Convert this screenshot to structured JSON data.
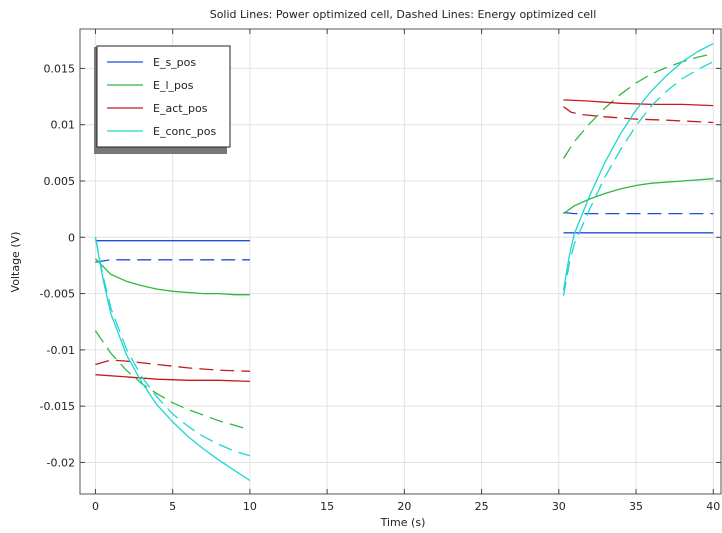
{
  "chart_data": {
    "type": "line",
    "title": "Solid Lines: Power optimized cell, Dashed Lines: Energy optimized cell",
    "xlabel": "Time (s)",
    "ylabel": "Voltage (V)",
    "xlim": [
      -1,
      40.5
    ],
    "ylim": [
      -0.0228,
      0.0185
    ],
    "xticks": [
      0,
      5,
      10,
      15,
      20,
      25,
      30,
      35,
      40
    ],
    "yticks": [
      0.015,
      0.01,
      0.005,
      0,
      -0.005,
      -0.01,
      -0.015,
      -0.02
    ],
    "xtick_labels": [
      "0",
      "5",
      "10",
      "15",
      "20",
      "25",
      "30",
      "35",
      "40"
    ],
    "ytick_labels": [
      "0.015",
      "0.01",
      "0.005",
      "0",
      "-0.005",
      "-0.01",
      "-0.015",
      "-0.02"
    ],
    "grid": true,
    "legend_position": "top-left",
    "legend": [
      {
        "label": "E_s_pos",
        "color": "#1f4fd6"
      },
      {
        "label": "E_l_pos",
        "color": "#2db844"
      },
      {
        "label": "E_act_pos",
        "color": "#c41a1a"
      },
      {
        "label": "E_conc_pos",
        "color": "#1fd6d0"
      }
    ],
    "series": [
      {
        "name": "E_s_pos",
        "style": "solid",
        "color": "#1f4fd6",
        "segments": [
          [
            [
              0,
              -0.0003
            ],
            [
              10,
              -0.0003
            ]
          ],
          [
            [
              30.3,
              0.0004
            ],
            [
              40,
              0.0004
            ]
          ]
        ]
      },
      {
        "name": "E_s_pos",
        "style": "dashed",
        "color": "#1f4fd6",
        "segments": [
          [
            [
              0,
              -0.0022
            ],
            [
              0.5,
              -0.0021
            ],
            [
              1,
              -0.002
            ],
            [
              3,
              -0.002
            ],
            [
              10,
              -0.002
            ]
          ],
          [
            [
              30.3,
              0.0022
            ],
            [
              31,
              0.0021
            ],
            [
              33,
              0.0021
            ],
            [
              40,
              0.0021
            ]
          ]
        ]
      },
      {
        "name": "E_l_pos",
        "style": "solid",
        "color": "#2db844",
        "segments": [
          [
            [
              0,
              -0.0019
            ],
            [
              1,
              -0.0033
            ],
            [
              2,
              -0.0039
            ],
            [
              3,
              -0.0043
            ],
            [
              4,
              -0.0046
            ],
            [
              5,
              -0.0048
            ],
            [
              6,
              -0.0049
            ],
            [
              7,
              -0.005
            ],
            [
              8,
              -0.005
            ],
            [
              9,
              -0.0051
            ],
            [
              10,
              -0.0051
            ]
          ],
          [
            [
              30.3,
              0.0021
            ],
            [
              31,
              0.0028
            ],
            [
              32,
              0.0034
            ],
            [
              33,
              0.0039
            ],
            [
              34,
              0.0043
            ],
            [
              35,
              0.0046
            ],
            [
              36,
              0.0048
            ],
            [
              37,
              0.0049
            ],
            [
              38,
              0.005
            ],
            [
              39,
              0.0051
            ],
            [
              40,
              0.0052
            ]
          ]
        ]
      },
      {
        "name": "E_l_pos",
        "style": "dashed",
        "color": "#2db844",
        "segments": [
          [
            [
              0,
              -0.0083
            ],
            [
              1,
              -0.0103
            ],
            [
              2,
              -0.0118
            ],
            [
              3,
              -0.013
            ],
            [
              4,
              -0.0139
            ],
            [
              5,
              -0.0147
            ],
            [
              6,
              -0.0153
            ],
            [
              7,
              -0.0158
            ],
            [
              8,
              -0.0163
            ],
            [
              9,
              -0.0167
            ],
            [
              10,
              -0.0171
            ]
          ],
          [
            [
              30.3,
              0.007
            ],
            [
              31,
              0.0085
            ],
            [
              32,
              0.0101
            ],
            [
              33,
              0.0115
            ],
            [
              34,
              0.0127
            ],
            [
              35,
              0.0137
            ],
            [
              36,
              0.0145
            ],
            [
              37,
              0.0151
            ],
            [
              38,
              0.0156
            ],
            [
              39,
              0.016
            ],
            [
              40,
              0.0163
            ]
          ]
        ]
      },
      {
        "name": "E_act_pos",
        "style": "solid",
        "color": "#c41a1a",
        "segments": [
          [
            [
              0,
              -0.0122
            ],
            [
              2,
              -0.0124
            ],
            [
              4,
              -0.0126
            ],
            [
              6,
              -0.0127
            ],
            [
              8,
              -0.0127
            ],
            [
              10,
              -0.0128
            ]
          ],
          [
            [
              30.3,
              0.0122
            ],
            [
              32,
              0.0121
            ],
            [
              34,
              0.0119
            ],
            [
              36,
              0.0118
            ],
            [
              38,
              0.0118
            ],
            [
              40,
              0.0117
            ]
          ]
        ]
      },
      {
        "name": "E_act_pos",
        "style": "dashed",
        "color": "#c41a1a",
        "segments": [
          [
            [
              0,
              -0.0113
            ],
            [
              0.5,
              -0.0111
            ],
            [
              1,
              -0.0109
            ],
            [
              2,
              -0.011
            ],
            [
              4,
              -0.0113
            ],
            [
              6,
              -0.0116
            ],
            [
              8,
              -0.0118
            ],
            [
              10,
              -0.0119
            ]
          ],
          [
            [
              30.3,
              0.0116
            ],
            [
              30.8,
              0.0111
            ],
            [
              31.5,
              0.0109
            ],
            [
              33,
              0.0107
            ],
            [
              35,
              0.0105
            ],
            [
              37,
              0.0104
            ],
            [
              40,
              0.0102
            ]
          ]
        ]
      },
      {
        "name": "E_conc_pos",
        "style": "solid",
        "color": "#1fd6d0",
        "segments": [
          [
            [
              0,
              0
            ],
            [
              0.5,
              -0.0038
            ],
            [
              1,
              -0.0068
            ],
            [
              2,
              -0.0104
            ],
            [
              3,
              -0.0129
            ],
            [
              4,
              -0.0149
            ],
            [
              5,
              -0.0164
            ],
            [
              6,
              -0.0177
            ],
            [
              7,
              -0.0188
            ],
            [
              8,
              -0.0198
            ],
            [
              9,
              -0.0207
            ],
            [
              10,
              -0.0216
            ]
          ],
          [
            [
              30.3,
              -0.0047
            ],
            [
              30.7,
              -0.0015
            ],
            [
              31,
              0.0003
            ],
            [
              32,
              0.0037
            ],
            [
              33,
              0.0067
            ],
            [
              34,
              0.0092
            ],
            [
              35,
              0.0113
            ],
            [
              36,
              0.013
            ],
            [
              37,
              0.0144
            ],
            [
              38,
              0.0156
            ],
            [
              39,
              0.0165
            ],
            [
              40,
              0.0172
            ]
          ]
        ]
      },
      {
        "name": "E_conc_pos",
        "style": "dashed",
        "color": "#1fd6d0",
        "segments": [
          [
            [
              0,
              0
            ],
            [
              0.5,
              -0.0035
            ],
            [
              1,
              -0.0063
            ],
            [
              2,
              -0.0099
            ],
            [
              3,
              -0.0124
            ],
            [
              4,
              -0.0142
            ],
            [
              5,
              -0.0157
            ],
            [
              6,
              -0.0168
            ],
            [
              7,
              -0.0177
            ],
            [
              8,
              -0.0184
            ],
            [
              9,
              -0.019
            ],
            [
              10,
              -0.0194
            ]
          ],
          [
            [
              30.3,
              -0.0052
            ],
            [
              30.7,
              -0.0022
            ],
            [
              31,
              -0.0006
            ],
            [
              32,
              0.0025
            ],
            [
              33,
              0.0054
            ],
            [
              34,
              0.0078
            ],
            [
              35,
              0.0099
            ],
            [
              36,
              0.0117
            ],
            [
              37,
              0.013
            ],
            [
              38,
              0.0141
            ],
            [
              39,
              0.0149
            ],
            [
              40,
              0.0156
            ]
          ]
        ]
      }
    ]
  }
}
